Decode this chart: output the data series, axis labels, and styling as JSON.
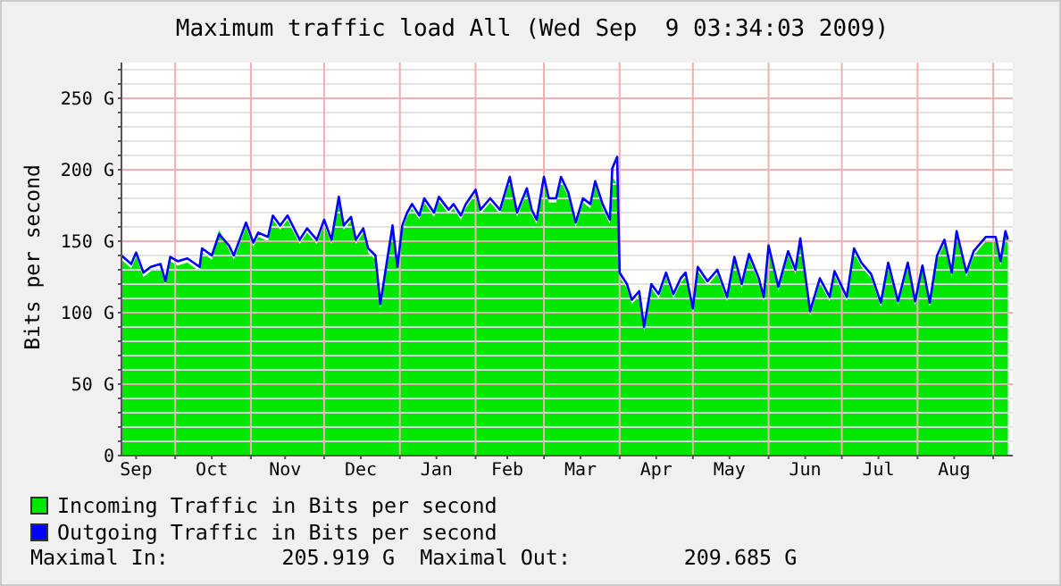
{
  "chart_data": {
    "type": "area",
    "title": "Maximum traffic load All (Wed Sep  9 03:34:03 2009)",
    "ylabel": "Bits per second",
    "x": [
      "2008-09-09",
      "2008-09-13",
      "2008-09-15",
      "2008-09-18",
      "2008-09-21",
      "2008-09-25",
      "2008-09-27",
      "2008-09-29",
      "2008-10-02",
      "2008-10-06",
      "2008-10-11",
      "2008-10-12",
      "2008-10-16",
      "2008-10-19",
      "2008-10-23",
      "2008-10-25",
      "2008-10-30",
      "2008-11-02",
      "2008-11-04",
      "2008-11-08",
      "2008-11-10",
      "2008-11-13",
      "2008-11-16",
      "2008-11-21",
      "2008-11-24",
      "2008-11-28",
      "2008-12-01",
      "2008-12-04",
      "2008-12-07",
      "2008-12-09",
      "2008-12-12",
      "2008-12-14",
      "2008-12-17",
      "2008-12-19",
      "2008-12-22",
      "2008-12-24",
      "2008-12-26",
      "2008-12-29",
      "2008-12-31",
      "2009-01-02",
      "2009-01-04",
      "2009-01-06",
      "2009-01-09",
      "2009-01-11",
      "2009-01-15",
      "2009-01-17",
      "2009-01-21",
      "2009-01-23",
      "2009-01-26",
      "2009-01-28",
      "2009-02-01",
      "2009-02-03",
      "2009-02-07",
      "2009-02-11",
      "2009-02-15",
      "2009-02-18",
      "2009-02-22",
      "2009-02-24",
      "2009-02-26",
      "2009-03-01",
      "2009-03-03",
      "2009-03-06",
      "2009-03-08",
      "2009-03-11",
      "2009-03-14",
      "2009-03-17",
      "2009-03-20",
      "2009-03-22",
      "2009-03-25",
      "2009-03-28",
      "2009-03-29",
      "2009-03-31",
      "2009-04-01",
      "2009-04-04",
      "2009-04-06",
      "2009-04-09",
      "2009-04-11",
      "2009-04-14",
      "2009-04-17",
      "2009-04-20",
      "2009-04-23",
      "2009-04-26",
      "2009-04-28",
      "2009-05-01",
      "2009-05-03",
      "2009-05-07",
      "2009-05-11",
      "2009-05-15",
      "2009-05-18",
      "2009-05-21",
      "2009-05-24",
      "2009-05-28",
      "2009-05-30",
      "2009-06-01",
      "2009-06-05",
      "2009-06-09",
      "2009-06-12",
      "2009-06-14",
      "2009-06-18",
      "2009-06-22",
      "2009-06-26",
      "2009-06-28",
      "2009-07-03",
      "2009-07-06",
      "2009-07-09",
      "2009-07-13",
      "2009-07-17",
      "2009-07-20",
      "2009-07-24",
      "2009-07-28",
      "2009-07-31",
      "2009-08-03",
      "2009-08-06",
      "2009-08-09",
      "2009-08-12",
      "2009-08-15",
      "2009-08-17",
      "2009-08-21",
      "2009-08-24",
      "2009-08-29",
      "2009-09-02",
      "2009-09-04",
      "2009-09-06",
      "2009-09-07"
    ],
    "series": [
      {
        "name": "Incoming Traffic in Bits per second",
        "type": "area",
        "color": "#00e800",
        "values": [
          137,
          131,
          139,
          125,
          129,
          131,
          119,
          136,
          133,
          135,
          129,
          142,
          137,
          158,
          144,
          137,
          160,
          146,
          153,
          150,
          165,
          158,
          165,
          148,
          156,
          148,
          162,
          148,
          178,
          158,
          164,
          148,
          156,
          142,
          137,
          103,
          125,
          158,
          129,
          158,
          167,
          173,
          165,
          177,
          167,
          178,
          169,
          173,
          165,
          173,
          183,
          169,
          177,
          169,
          192,
          167,
          184,
          169,
          162,
          192,
          177,
          177,
          192,
          181,
          160,
          177,
          173,
          189,
          173,
          162,
          195,
          190,
          125,
          117,
          106,
          112,
          87,
          117,
          110,
          125,
          110,
          121,
          125,
          100,
          129,
          119,
          127,
          108,
          136,
          117,
          138,
          121,
          108,
          144,
          115,
          140,
          127,
          149,
          98,
          121,
          108,
          126,
          108,
          142,
          132,
          124,
          104,
          132,
          105,
          132,
          105,
          130,
          104,
          137,
          148,
          125,
          154,
          125,
          140,
          150,
          150,
          133,
          154,
          148
        ]
      },
      {
        "name": "Outgoing Traffic in Bits per second",
        "type": "line",
        "color": "#0000ff",
        "values": [
          140,
          134,
          142,
          128,
          132,
          134,
          122,
          139,
          136,
          138,
          132,
          145,
          140,
          155,
          147,
          140,
          163,
          149,
          156,
          153,
          168,
          161,
          168,
          151,
          159,
          151,
          165,
          151,
          181,
          161,
          167,
          151,
          159,
          145,
          140,
          106,
          128,
          161,
          132,
          161,
          170,
          176,
          168,
          180,
          170,
          181,
          172,
          176,
          168,
          176,
          186,
          172,
          180,
          172,
          195,
          170,
          187,
          172,
          165,
          195,
          180,
          180,
          195,
          184,
          163,
          180,
          176,
          192,
          176,
          165,
          201,
          209,
          128,
          120,
          109,
          115,
          90,
          120,
          113,
          128,
          113,
          124,
          128,
          103,
          132,
          122,
          130,
          111,
          139,
          120,
          141,
          124,
          111,
          147,
          118,
          143,
          130,
          152,
          101,
          124,
          111,
          129,
          111,
          145,
          135,
          127,
          107,
          135,
          108,
          135,
          108,
          133,
          107,
          140,
          151,
          128,
          157,
          128,
          143,
          153,
          153,
          136,
          157,
          151
        ]
      }
    ],
    "xlim": [
      "2008-09-09",
      "2009-09-09"
    ],
    "xticks": [
      {
        "value": "2008-09-15",
        "label": "Sep"
      },
      {
        "value": "2008-10-01",
        "label": null
      },
      {
        "value": "2008-10-16",
        "label": "Oct"
      },
      {
        "value": "2008-11-01",
        "label": null
      },
      {
        "value": "2008-11-15",
        "label": "Nov"
      },
      {
        "value": "2008-12-01",
        "label": null
      },
      {
        "value": "2008-12-16",
        "label": "Dec"
      },
      {
        "value": "2009-01-01",
        "label": null
      },
      {
        "value": "2009-01-16",
        "label": "Jan"
      },
      {
        "value": "2009-02-01",
        "label": null
      },
      {
        "value": "2009-02-14",
        "label": "Feb"
      },
      {
        "value": "2009-03-01",
        "label": null
      },
      {
        "value": "2009-03-16",
        "label": "Mar"
      },
      {
        "value": "2009-04-01",
        "label": null
      },
      {
        "value": "2009-04-16",
        "label": "Apr"
      },
      {
        "value": "2009-05-01",
        "label": null
      },
      {
        "value": "2009-05-16",
        "label": "May"
      },
      {
        "value": "2009-06-01",
        "label": null
      },
      {
        "value": "2009-06-16",
        "label": "Jun"
      },
      {
        "value": "2009-07-01",
        "label": null
      },
      {
        "value": "2009-07-16",
        "label": "Jul"
      },
      {
        "value": "2009-08-01",
        "label": null
      },
      {
        "value": "2009-08-16",
        "label": "Aug"
      },
      {
        "value": "2009-09-01",
        "label": null
      }
    ],
    "ylim": [
      0,
      275
    ],
    "yticks": [
      0,
      {
        "value": 10,
        "label": null
      },
      {
        "value": 20,
        "label": null
      },
      {
        "value": 30,
        "label": null
      },
      {
        "value": 40,
        "label": null
      },
      {
        "value": 50,
        "label": "50 G"
      },
      {
        "value": 60,
        "label": null
      },
      {
        "value": 70,
        "label": null
      },
      {
        "value": 80,
        "label": null
      },
      {
        "value": 90,
        "label": null
      },
      {
        "value": 100,
        "label": "100 G"
      },
      {
        "value": 110,
        "label": null
      },
      {
        "value": 120,
        "label": null
      },
      {
        "value": 130,
        "label": null
      },
      {
        "value": 140,
        "label": null
      },
      {
        "value": 150,
        "label": "150 G"
      },
      {
        "value": 160,
        "label": null
      },
      {
        "value": 170,
        "label": null
      },
      {
        "value": 180,
        "label": null
      },
      {
        "value": 190,
        "label": null
      },
      {
        "value": 200,
        "label": "200 G"
      },
      {
        "value": 210,
        "label": null
      },
      {
        "value": 220,
        "label": null
      },
      {
        "value": 230,
        "label": null
      },
      {
        "value": 240,
        "label": null
      },
      {
        "value": 250,
        "label": "250 G"
      },
      {
        "value": 260,
        "label": null
      },
      {
        "value": 270,
        "label": null
      }
    ],
    "grid": true,
    "legend": "bottom",
    "annotations": [
      "Maximal In:         205.919 G",
      "Maximal Out:         209.685 G"
    ]
  }
}
